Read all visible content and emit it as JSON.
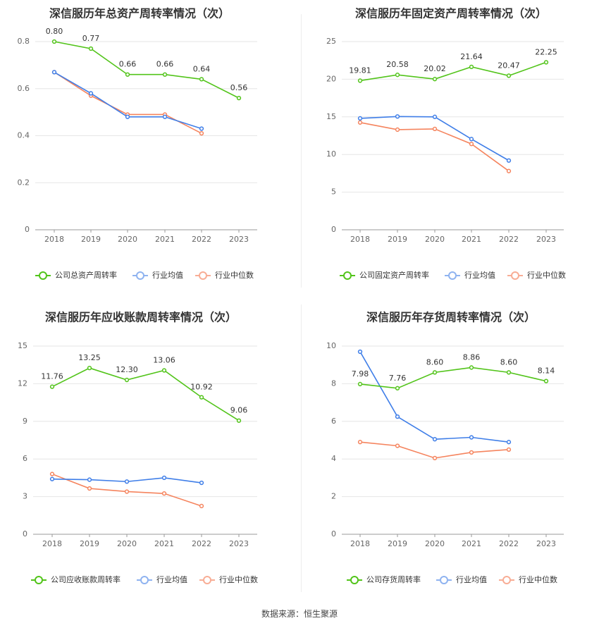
{
  "colors": {
    "company": "#52c41a",
    "avg": "#3f7ee8",
    "median": "#f5845e"
  },
  "source": "数据来源：恒生聚源",
  "legend": {
    "avg": "行业均值",
    "median": "行业中位数"
  },
  "chart_data": [
    {
      "type": "line",
      "title": "深信服历年总资产周转率情况（次）",
      "categories": [
        "2018",
        "2019",
        "2020",
        "2021",
        "2022",
        "2023"
      ],
      "yticks": [
        "0",
        "0.2",
        "0.4",
        "0.6",
        "0.8"
      ],
      "ylim": [
        0,
        0.8
      ],
      "series": [
        {
          "name": "公司总资产周转率",
          "role": "company",
          "values": [
            0.8,
            0.77,
            0.66,
            0.66,
            0.64,
            0.56
          ],
          "labels": [
            "0.80",
            "0.77",
            "0.66",
            "0.66",
            "0.64",
            "0.56"
          ]
        },
        {
          "name": "行业均值",
          "role": "avg",
          "values": [
            0.67,
            0.58,
            0.48,
            0.48,
            0.43,
            null
          ]
        },
        {
          "name": "行业中位数",
          "role": "median",
          "values": [
            0.67,
            0.57,
            0.49,
            0.49,
            0.41,
            null
          ]
        }
      ]
    },
    {
      "type": "line",
      "title": "深信服历年固定资产周转率情况（次）",
      "categories": [
        "2018",
        "2019",
        "2020",
        "2021",
        "2022",
        "2023"
      ],
      "yticks": [
        "0",
        "5",
        "10",
        "15",
        "20",
        "25"
      ],
      "ylim": [
        0,
        25
      ],
      "series": [
        {
          "name": "公司固定资产周转率",
          "role": "company",
          "values": [
            19.81,
            20.58,
            20.02,
            21.64,
            20.47,
            22.25
          ],
          "labels": [
            "19.81",
            "20.58",
            "20.02",
            "21.64",
            "20.47",
            "22.25"
          ]
        },
        {
          "name": "行业均值",
          "role": "avg",
          "values": [
            14.8,
            15.05,
            15.0,
            12.05,
            9.2,
            null
          ]
        },
        {
          "name": "行业中位数",
          "role": "median",
          "values": [
            14.25,
            13.3,
            13.4,
            11.4,
            7.8,
            null
          ]
        }
      ]
    },
    {
      "type": "line",
      "title": "深信服历年应收账款周转率情况（次）",
      "categories": [
        "2018",
        "2019",
        "2020",
        "2021",
        "2022",
        "2023"
      ],
      "yticks": [
        "0",
        "3",
        "6",
        "9",
        "12",
        "15"
      ],
      "ylim": [
        0,
        15
      ],
      "series": [
        {
          "name": "公司应收账款周转率",
          "role": "company",
          "values": [
            11.76,
            13.25,
            12.3,
            13.06,
            10.92,
            9.06
          ],
          "labels": [
            "11.76",
            "13.25",
            "12.30",
            "13.06",
            "10.92",
            "9.06"
          ]
        },
        {
          "name": "行业均值",
          "role": "avg",
          "values": [
            4.4,
            4.35,
            4.2,
            4.5,
            4.1,
            null
          ]
        },
        {
          "name": "行业中位数",
          "role": "median",
          "values": [
            4.8,
            3.65,
            3.4,
            3.25,
            2.25,
            null
          ]
        }
      ]
    },
    {
      "type": "line",
      "title": "深信服历年存货周转率情况（次）",
      "categories": [
        "2018",
        "2019",
        "2020",
        "2021",
        "2022",
        "2023"
      ],
      "yticks": [
        "0",
        "2",
        "4",
        "6",
        "8",
        "10"
      ],
      "ylim": [
        0,
        10
      ],
      "series": [
        {
          "name": "公司存货周转率",
          "role": "company",
          "values": [
            7.98,
            7.76,
            8.6,
            8.86,
            8.6,
            8.14
          ],
          "labels": [
            "7.98",
            "7.76",
            "8.60",
            "8.86",
            "8.60",
            "8.14"
          ]
        },
        {
          "name": "行业均值",
          "role": "avg",
          "values": [
            9.7,
            6.25,
            5.05,
            5.15,
            4.9,
            null
          ]
        },
        {
          "name": "行业中位数",
          "role": "median",
          "values": [
            4.9,
            4.7,
            4.05,
            4.35,
            4.5,
            null
          ]
        }
      ]
    }
  ]
}
